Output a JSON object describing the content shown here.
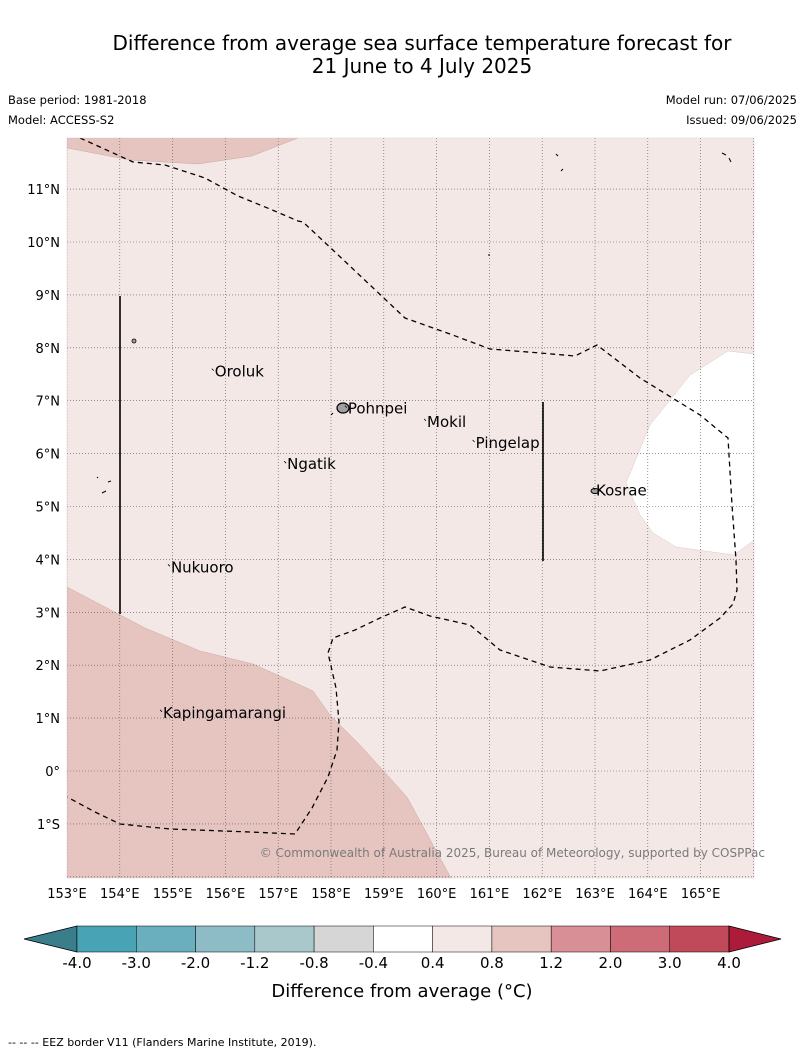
{
  "title": {
    "line1": "Difference from average sea surface temperature forecast for",
    "line2": "21 June to 4 July 2025"
  },
  "meta": {
    "base_period": "Base period: 1981-2018",
    "model": "Model: ACCESS-S2",
    "model_run": "Model run: 07/06/2025",
    "issued": "Issued: 09/06/2025"
  },
  "map": {
    "lon_labels": [
      "153°E",
      "154°E",
      "155°E",
      "156°E",
      "157°E",
      "158°E",
      "159°E",
      "160°E",
      "161°E",
      "162°E",
      "163°E",
      "164°E",
      "165°E"
    ],
    "lat_labels": [
      "11°N",
      "10°N",
      "9°N",
      "8°N",
      "7°N",
      "6°N",
      "5°N",
      "4°N",
      "3°N",
      "2°N",
      "1°N",
      "0°",
      "1°S"
    ],
    "places": [
      {
        "name": "Oroluk",
        "lon": 155.78,
        "lat": 7.55
      },
      {
        "name": "Pohnpei",
        "lon": 158.3,
        "lat": 6.85
      },
      {
        "name": "Mokil",
        "lon": 159.8,
        "lat": 6.6
      },
      {
        "name": "Pingelap",
        "lon": 160.72,
        "lat": 6.2
      },
      {
        "name": "Ngatik",
        "lon": 157.15,
        "lat": 5.8
      },
      {
        "name": "Kosrae",
        "lon": 163.0,
        "lat": 5.3
      },
      {
        "name": "Nukuoro",
        "lon": 154.95,
        "lat": 3.85
      },
      {
        "name": "Kapingamarangi",
        "lon": 154.8,
        "lat": 1.1
      }
    ],
    "copyright": "© Commonwealth of Australia 2025, Bureau of Meteorology, supported by COSPPac"
  },
  "colorbar": {
    "tick_labels": [
      "-4.0",
      "-3.0",
      "-2.0",
      "-1.2",
      "-0.8",
      "-0.4",
      "0.4",
      "0.8",
      "1.2",
      "2.0",
      "3.0",
      "4.0"
    ],
    "colors": [
      "#48a3b5",
      "#6aafbe",
      "#8dbcc6",
      "#a8c8cc",
      "#d6d6d6",
      "#ffffff",
      "#f4e8e7",
      "#e6c5c1",
      "#d88f96",
      "#cd6b76",
      "#c04a59"
    ],
    "under_color": "#3a7e8c",
    "over_color": "#ac1c3a",
    "label": "Difference from average (°C)"
  },
  "footer": "--  --  -- EEZ border V11 (Flanders Marine Institute, 2019)."
}
